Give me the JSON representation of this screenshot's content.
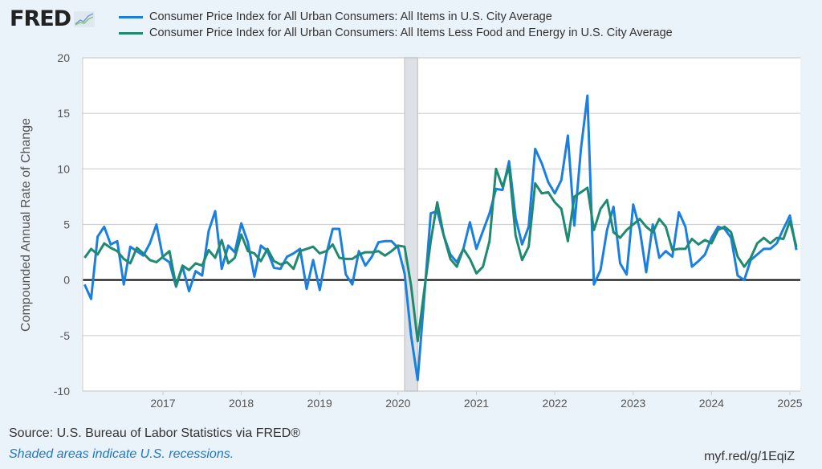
{
  "logo": {
    "text": "FRED",
    "icon": "chart-line-icon"
  },
  "footer": {
    "source": "Source: U.S. Bureau of Labor Statistics via FRED®",
    "note": "Shaded areas indicate U.S. recessions.",
    "link": "myf.red/g/1EqiZ"
  },
  "chart_data": {
    "type": "line",
    "title": "",
    "xlabel": "",
    "ylabel": "Compounded Annual Rate of Change",
    "ylim": [
      -10,
      20
    ],
    "yticks": [
      20,
      15,
      10,
      5,
      0,
      -5,
      -10
    ],
    "xticks": [
      "2017",
      "2018",
      "2019",
      "2020",
      "2021",
      "2022",
      "2023",
      "2024",
      "2025"
    ],
    "x_start": "2016-01",
    "x_end": "2025-02",
    "frequency": "monthly",
    "grid": true,
    "legend_position": "top",
    "recessions": [
      {
        "start": "2020-02",
        "end": "2020-04"
      }
    ],
    "series": [
      {
        "name": "Consumer Price Index for All Urban Consumers: All Items in U.S. City Average",
        "color": "#1a7fe0",
        "values": [
          -0.4,
          -1.7,
          3.9,
          4.8,
          3.2,
          3.5,
          -0.4,
          3.0,
          2.6,
          2.2,
          3.3,
          5.0,
          2.0,
          1.6,
          -0.6,
          1.2,
          -1.0,
          0.8,
          0.4,
          4.4,
          6.2,
          1.0,
          3.1,
          2.5,
          5.1,
          3.4,
          0.3,
          3.1,
          2.6,
          1.1,
          1.0,
          2.1,
          2.4,
          2.8,
          -0.8,
          1.8,
          -0.9,
          2.3,
          4.6,
          4.6,
          0.5,
          -0.4,
          2.6,
          1.3,
          2.1,
          3.4,
          3.5,
          3.5,
          2.9,
          0.6,
          -5.0,
          -9.0,
          -1.6,
          6.0,
          6.2,
          4.0,
          2.3,
          1.6,
          2.8,
          5.2,
          2.8,
          4.4,
          6.0,
          8.2,
          8.1,
          10.7,
          5.6,
          3.2,
          4.8,
          11.8,
          10.5,
          8.8,
          7.8,
          9.0,
          13.0,
          4.9,
          11.8,
          16.6,
          -0.4,
          0.9,
          4.5,
          6.6,
          1.5,
          0.5,
          6.8,
          4.6,
          0.7,
          5.0,
          2.0,
          2.6,
          2.1,
          6.1,
          4.8,
          1.2,
          1.7,
          2.3,
          3.8,
          4.8,
          4.6,
          3.8,
          0.4,
          0.0,
          1.8,
          2.3,
          2.8,
          2.8,
          3.3,
          4.6,
          5.8,
          2.7
        ]
      },
      {
        "name": "Consumer Price Index for All Urban Consumers: All Items Less Food and Energy in U.S. City Average",
        "color": "#1f8a70",
        "values": [
          2.0,
          2.8,
          2.3,
          3.3,
          2.9,
          2.6,
          1.9,
          1.5,
          2.9,
          2.4,
          1.8,
          1.6,
          2.1,
          2.6,
          -0.5,
          1.3,
          0.9,
          1.5,
          1.3,
          2.7,
          2.0,
          3.6,
          1.5,
          2.0,
          4.1,
          2.6,
          2.4,
          1.7,
          2.8,
          1.7,
          1.4,
          1.6,
          1.0,
          2.6,
          2.8,
          3.0,
          2.4,
          2.6,
          3.2,
          2.0,
          1.9,
          1.9,
          2.3,
          2.5,
          2.5,
          2.6,
          2.2,
          2.6,
          3.1,
          3.0,
          -0.5,
          -5.5,
          -1.0,
          3.5,
          7.0,
          4.0,
          1.9,
          1.2,
          2.8,
          1.9,
          0.6,
          1.2,
          3.5,
          10.0,
          8.4,
          10.2,
          4.0,
          1.8,
          3.0,
          8.7,
          7.8,
          7.9,
          7.0,
          6.4,
          3.5,
          7.5,
          7.9,
          8.3,
          4.5,
          6.4,
          7.2,
          4.3,
          3.8,
          4.5,
          5.0,
          5.5,
          4.8,
          4.3,
          5.5,
          4.8,
          2.7,
          2.8,
          2.8,
          3.7,
          3.2,
          3.6,
          3.3,
          4.5,
          4.8,
          4.3,
          2.1,
          1.2,
          2.0,
          3.3,
          3.8,
          3.3,
          3.8,
          3.7,
          5.3,
          3.0
        ]
      }
    ]
  }
}
